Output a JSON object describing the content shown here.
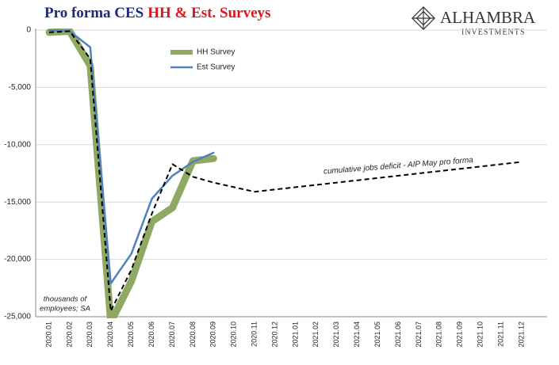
{
  "chart_data": {
    "type": "line",
    "title": [
      {
        "text": "Pro forma CES",
        "color": "#1f2a78"
      },
      {
        "text": "HH & Est. Surveys",
        "color": "#e0141e"
      }
    ],
    "logo": [
      "ALHAMBRA",
      "INVESTMENTS"
    ],
    "annotations": [
      "thousands of",
      "employees; SA"
    ],
    "categories": [
      "2020.01",
      "2020.02",
      "2020.03",
      "2020.04",
      "2020.05",
      "2020.06",
      "2020.07",
      "2020.08",
      "2020.09",
      "2020.10",
      "2020.11",
      "2020.12",
      "2021.01",
      "2021.02",
      "2021.03",
      "2021.04",
      "2021.05",
      "2021.06",
      "2021.07",
      "2021.08",
      "2021.09",
      "2021.10",
      "2021.11",
      "2021.12"
    ],
    "series": [
      {
        "name": "HH Survey",
        "color": "#8fa963",
        "width": 9,
        "style": "solid",
        "legend": true,
        "values": [
          -200,
          -100,
          -3100,
          -25500,
          -21900,
          -16700,
          -15500,
          -11400,
          -11200,
          null,
          null,
          null,
          null,
          null,
          null,
          null,
          null,
          null,
          null,
          null,
          null,
          null,
          null,
          null
        ]
      },
      {
        "name": "Est Survey",
        "color": "#4f81bd",
        "width": 2.5,
        "style": "solid",
        "legend": true,
        "values": [
          0,
          -100,
          -1500,
          -22100,
          -19500,
          -14700,
          -12700,
          -11500,
          -10700,
          null,
          null,
          null,
          null,
          null,
          null,
          null,
          null,
          null,
          null,
          null,
          null,
          null,
          null,
          null
        ]
      },
      {
        "name": "cumulative jobs deficit - AIP May pro forma",
        "color": "#000000",
        "width": 2,
        "style": "dashed",
        "legend": false,
        "values": [
          -200,
          -100,
          -2500,
          -24500,
          -20900,
          -16000,
          -11700,
          -12800,
          -13300,
          -13700,
          -14100,
          -13900,
          -13700,
          -13500,
          -13300,
          -13100,
          -12900,
          -12700,
          -12500,
          -12300,
          -12100,
          -11900,
          -11700,
          -11500
        ]
      }
    ],
    "ylim": [
      -25000,
      0
    ],
    "yticks": [
      {
        "value": -25000,
        "label": "-25,000"
      },
      {
        "value": -20000,
        "label": "-20,000"
      },
      {
        "value": -15000,
        "label": "-15,000"
      },
      {
        "value": -10000,
        "label": "-10,000"
      },
      {
        "value": -5000,
        "label": "-5,000"
      },
      0
    ],
    "grid": true
  }
}
